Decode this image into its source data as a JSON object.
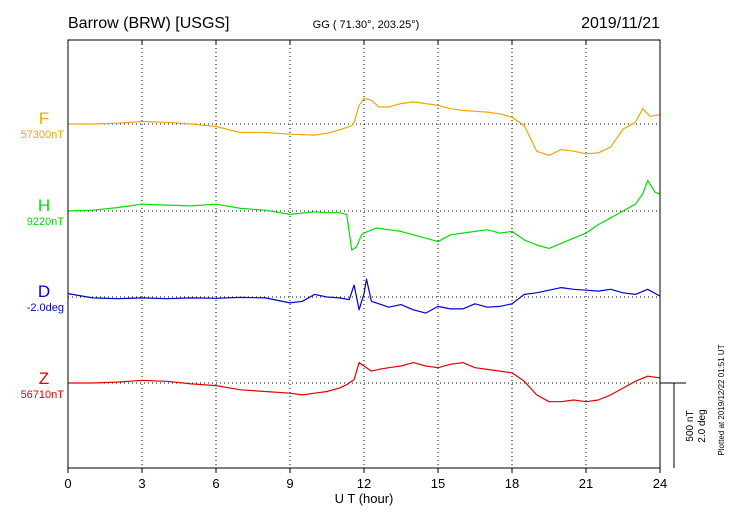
{
  "header": {
    "station": "Barrow (BRW)  [USGS]",
    "coordinates": "GG ( 71.30°, 203.25°)",
    "date": "2019/11/21"
  },
  "footer": {
    "plotted_note": "Plotted at 2019/12/22 01:51  UT"
  },
  "chart_data": {
    "type": "line",
    "title": "Barrow (BRW)  [USGS]",
    "xlabel": "U T (hour)",
    "ylabel": "",
    "xlim": [
      0,
      24
    ],
    "xticks": [
      0,
      3,
      6,
      9,
      12,
      15,
      18,
      21,
      24
    ],
    "grid": true,
    "scale": {
      "nT_label": "500 nT",
      "deg_label": "2.0 deg",
      "nT_per_bar": 500,
      "deg_per_bar": 2.0
    },
    "colors": {
      "F": "#f0a800",
      "H": "#00e000",
      "D": "#0000d8",
      "Z": "#e80000"
    },
    "series": [
      {
        "name": "F",
        "baseline_label": "57300nT",
        "baseline": 57300,
        "unit": "nT",
        "color": "#f0a800",
        "x": [
          0,
          1,
          2,
          3,
          4,
          5,
          6,
          7,
          8,
          9,
          10,
          10.5,
          11,
          11.5,
          11.6,
          11.8,
          12,
          12.3,
          12.6,
          13,
          13.5,
          14,
          14.5,
          15,
          15.5,
          16,
          16.5,
          17,
          17.5,
          18,
          18.5,
          19,
          19.5,
          20,
          20.5,
          21,
          21.5,
          22,
          22.5,
          23,
          23.3,
          23.6,
          24
        ],
        "y": [
          57300,
          57300,
          57305,
          57315,
          57310,
          57300,
          57285,
          57250,
          57250,
          57240,
          57235,
          57245,
          57265,
          57290,
          57310,
          57410,
          57450,
          57440,
          57400,
          57400,
          57420,
          57430,
          57420,
          57410,
          57390,
          57380,
          57375,
          57370,
          57360,
          57340,
          57290,
          57140,
          57115,
          57150,
          57140,
          57125,
          57130,
          57165,
          57270,
          57310,
          57390,
          57345,
          57355
        ]
      },
      {
        "name": "H",
        "baseline_label": "9220nT",
        "baseline": 9220,
        "unit": "nT",
        "color": "#00e000",
        "x": [
          0,
          1,
          2,
          3,
          4,
          5,
          6,
          7,
          8,
          9,
          10,
          10.5,
          11,
          11.3,
          11.5,
          11.7,
          11.9,
          12,
          12.5,
          13,
          13.5,
          14,
          14.5,
          15,
          15.5,
          16,
          16.5,
          17,
          17.5,
          18,
          18.5,
          19,
          19.5,
          20,
          20.5,
          21,
          21.5,
          22,
          22.5,
          23,
          23.3,
          23.5,
          23.8,
          24
        ],
        "y": [
          9220,
          9225,
          9240,
          9260,
          9255,
          9250,
          9260,
          9235,
          9225,
          9200,
          9215,
          9210,
          9210,
          9200,
          8990,
          9010,
          9080,
          9090,
          9120,
          9110,
          9100,
          9080,
          9060,
          9040,
          9080,
          9090,
          9100,
          9110,
          9090,
          9100,
          9050,
          9020,
          9000,
          9030,
          9060,
          9090,
          9140,
          9180,
          9220,
          9260,
          9320,
          9400,
          9330,
          9320
        ]
      },
      {
        "name": "D",
        "baseline_label": "-2.0deg",
        "baseline": -2.0,
        "unit": "deg",
        "color": "#0000d8",
        "x": [
          0,
          1,
          2,
          3,
          4,
          5,
          6,
          7,
          8,
          9,
          9.5,
          10,
          10.5,
          11,
          11.4,
          11.6,
          11.8,
          12,
          12.1,
          12.3,
          12.5,
          13,
          13.5,
          14,
          14.5,
          15,
          15.5,
          16,
          16.5,
          17,
          17.5,
          18,
          18.5,
          19,
          19.5,
          20,
          20.5,
          21,
          21.5,
          22,
          22.5,
          23,
          23.5,
          24
        ],
        "y": [
          -2.08,
          -1.98,
          -1.96,
          -1.98,
          -1.96,
          -1.98,
          -1.97,
          -1.99,
          -1.98,
          -1.86,
          -1.9,
          -2.06,
          -2.0,
          -1.98,
          -1.94,
          -2.28,
          -1.7,
          -2.08,
          -2.42,
          -1.9,
          -1.86,
          -1.76,
          -1.82,
          -1.7,
          -1.62,
          -1.78,
          -1.72,
          -1.72,
          -1.84,
          -1.76,
          -1.78,
          -1.84,
          -2.06,
          -2.1,
          -2.16,
          -2.22,
          -2.18,
          -2.16,
          -2.14,
          -2.18,
          -2.1,
          -2.06,
          -2.18,
          -2.02
        ]
      },
      {
        "name": "Z",
        "baseline_label": "56710nT",
        "baseline": 56710,
        "unit": "nT",
        "color": "#e80000",
        "x": [
          0,
          1,
          2,
          3,
          4,
          5,
          6,
          7,
          8,
          9,
          9.5,
          10,
          10.5,
          11,
          11.3,
          11.6,
          11.8,
          12,
          12.3,
          12.6,
          13,
          13.5,
          14,
          14.5,
          15,
          15.5,
          16,
          16.5,
          17,
          17.5,
          18,
          18.5,
          19,
          19.5,
          20,
          20.5,
          21,
          21.5,
          22,
          22.5,
          23,
          23.5,
          24
        ],
        "y": [
          56710,
          56710,
          56715,
          56725,
          56720,
          56705,
          56695,
          56670,
          56660,
          56650,
          56640,
          56650,
          56660,
          56680,
          56700,
          56730,
          56830,
          56810,
          56780,
          56790,
          56800,
          56810,
          56830,
          56810,
          56800,
          56820,
          56830,
          56800,
          56790,
          56780,
          56770,
          56720,
          56640,
          56600,
          56600,
          56610,
          56600,
          56610,
          56640,
          56680,
          56720,
          56750,
          56740
        ]
      }
    ]
  }
}
